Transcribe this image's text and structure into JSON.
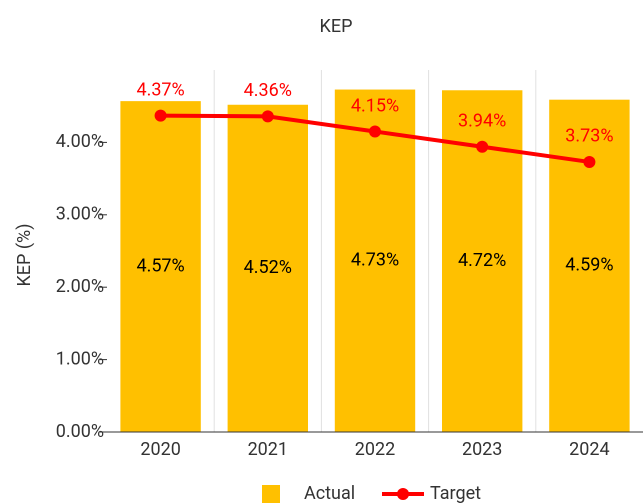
{
  "chart_data": {
    "type": "bar",
    "title": "KEP",
    "ylabel": "KEP (%)",
    "categories": [
      "2020",
      "2021",
      "2022",
      "2023",
      "2024"
    ],
    "series": [
      {
        "name": "Actual",
        "type": "bar",
        "color": "#FFC000",
        "values": [
          4.57,
          4.52,
          4.73,
          4.72,
          4.59
        ],
        "value_labels": [
          "4.57%",
          "4.52%",
          "4.73%",
          "4.72%",
          "4.59%"
        ]
      },
      {
        "name": "Target",
        "type": "line",
        "color": "#FF0000",
        "values": [
          4.37,
          4.36,
          4.15,
          3.94,
          3.73
        ],
        "value_labels": [
          "4.37%",
          "4.36%",
          "4.15%",
          "3.94%",
          "3.73%"
        ]
      }
    ],
    "ylim": [
      0,
      5
    ],
    "yticks": [
      {
        "value": 0,
        "label": "0.00%"
      },
      {
        "value": 1,
        "label": "1.00%"
      },
      {
        "value": 2,
        "label": "2.00%"
      },
      {
        "value": 3,
        "label": "3.00%"
      },
      {
        "value": 4,
        "label": "4.00%"
      }
    ],
    "legend": "bottom"
  }
}
